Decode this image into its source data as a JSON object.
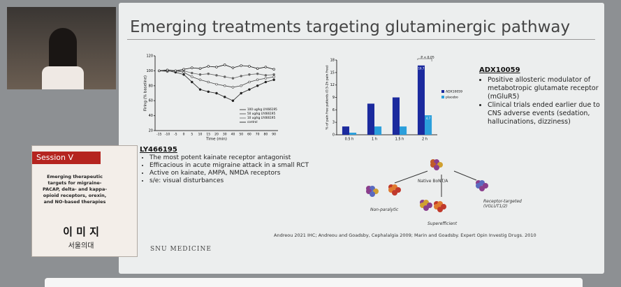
{
  "slide": {
    "title": "Emerging treatments targeting glutaminergic pathway",
    "ly_heading": "LY466195",
    "ly_bullets": [
      "The most potent kainate receptor antagonist",
      "Efficacious in acute migraine attack in a small RCT",
      "Active on kainate, AMPA, NMDA receptors",
      "s/e: visual disturbances"
    ],
    "adx_heading": "ADX10059",
    "adx_bullets": [
      "Positive allosteric modulator of metabotropic glutamate receptor (mGluR5)",
      "Clinical trials ended earlier due to CNS adverse events (sedation, hallucinations, dizziness)"
    ],
    "diagram": {
      "center": "Native BoNT/A",
      "left": "Non-paralytic",
      "bottom": "Superefficient",
      "right": "Receptor-targeted (VGLUT1/2)"
    },
    "references": "Andreou 2021 IHC; Andreou and Goadsby, Cephalalgia 2009; Marin and Goadsby. Expert Opin Investig Drugs. 2010",
    "footer": "SNU MEDICINE"
  },
  "session_panel": {
    "header": "Session V",
    "topic": "Emerging therapeutic targets for migraine- PACAP, delta- and kappa-opioid receptors, orexin, and NO-based therapies",
    "speaker": "이 미 지",
    "affiliation": "서울의대"
  },
  "chart_data": [
    {
      "type": "line",
      "x_label": "Time (min)",
      "y_label": "Firing (% baseline)",
      "categories": [
        "-15",
        "-10",
        "-5",
        "0",
        "5",
        "10",
        "15",
        "20",
        "30",
        "40",
        "50",
        "60",
        "70",
        "80",
        "90"
      ],
      "series": [
        {
          "name": "100 ug/kg LY466195",
          "color": "#222222",
          "values": [
            100,
            100,
            98,
            95,
            85,
            75,
            72,
            70,
            65,
            60,
            70,
            75,
            80,
            85,
            88
          ]
        },
        {
          "name": "50 ug/kg LY466195",
          "color": "#444444",
          "values": [
            100,
            101,
            100,
            98,
            92,
            88,
            85,
            82,
            80,
            78,
            80,
            85,
            88,
            90,
            92
          ]
        },
        {
          "name": "10 ug/kg LY466195",
          "color": "#666666",
          "values": [
            100,
            99,
            100,
            100,
            97,
            95,
            96,
            94,
            92,
            90,
            93,
            95,
            96,
            94,
            95
          ]
        },
        {
          "name": "control",
          "color": "#111111",
          "values": [
            100,
            101,
            100,
            102,
            104,
            103,
            106,
            105,
            108,
            104,
            107,
            106,
            103,
            105,
            102
          ]
        }
      ],
      "ylim": [
        20,
        120
      ],
      "yticks": [
        20,
        40,
        60,
        80,
        100,
        120
      ]
    },
    {
      "type": "bar",
      "y_label": "% of pain free patients (0.5-2h pain free)",
      "annotation": "P < 0.05",
      "categories": [
        "0.5 h",
        "1 h",
        "1.5 h",
        "2 h"
      ],
      "series": [
        {
          "name": "ADX10059",
          "color": "#1b2a9e",
          "values": [
            2,
            7.5,
            9,
            16.7
          ],
          "value_labels": [
            null,
            null,
            null,
            "16.7"
          ]
        },
        {
          "name": "placebo",
          "color": "#2b9fdc",
          "values": [
            0.5,
            2,
            2,
            4.7
          ],
          "value_labels": [
            null,
            null,
            null,
            "4.7"
          ]
        }
      ],
      "ylim": [
        0,
        18
      ],
      "yticks": [
        0,
        3,
        6,
        9,
        12,
        15,
        18
      ]
    }
  ]
}
